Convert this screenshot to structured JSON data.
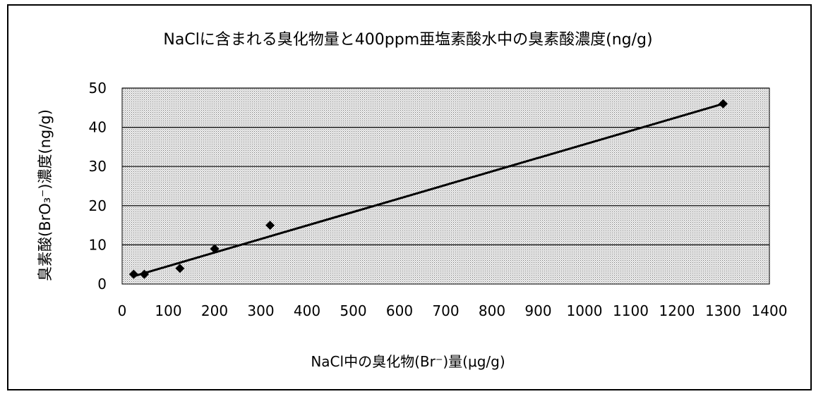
{
  "chart_data": {
    "type": "scatter",
    "title": "NaClに含まれる臭化物量と400ppm亜塩素酸水中の臭素酸濃度(ng/g)",
    "xlabel": "NaCl中の臭化物(Br⁻)量(μg/g)",
    "ylabel": "臭素酸(BrO₃⁻)濃度(ng/g)",
    "xlim": [
      0,
      1400
    ],
    "ylim": [
      0,
      50
    ],
    "xticks": [
      "0",
      "100",
      "200",
      "300",
      "400",
      "500",
      "600",
      "700",
      "800",
      "900",
      "1000",
      "1100",
      "1200",
      "1300",
      "1400"
    ],
    "yticks": [
      "0",
      "10",
      "20",
      "30",
      "40",
      "50"
    ],
    "grid": true,
    "legend": "none",
    "points": {
      "x": [
        25,
        48,
        125,
        200,
        320,
        1300
      ],
      "y": [
        2.5,
        2.5,
        4,
        9,
        15,
        46
      ]
    },
    "trendline": {
      "type": "linear",
      "x": [
        25,
        1300
      ],
      "y": [
        2,
        46
      ]
    },
    "colors": {
      "background": "#d8d8d8",
      "marker": "#000000",
      "line": "#000000",
      "gridline": "#000000"
    }
  }
}
